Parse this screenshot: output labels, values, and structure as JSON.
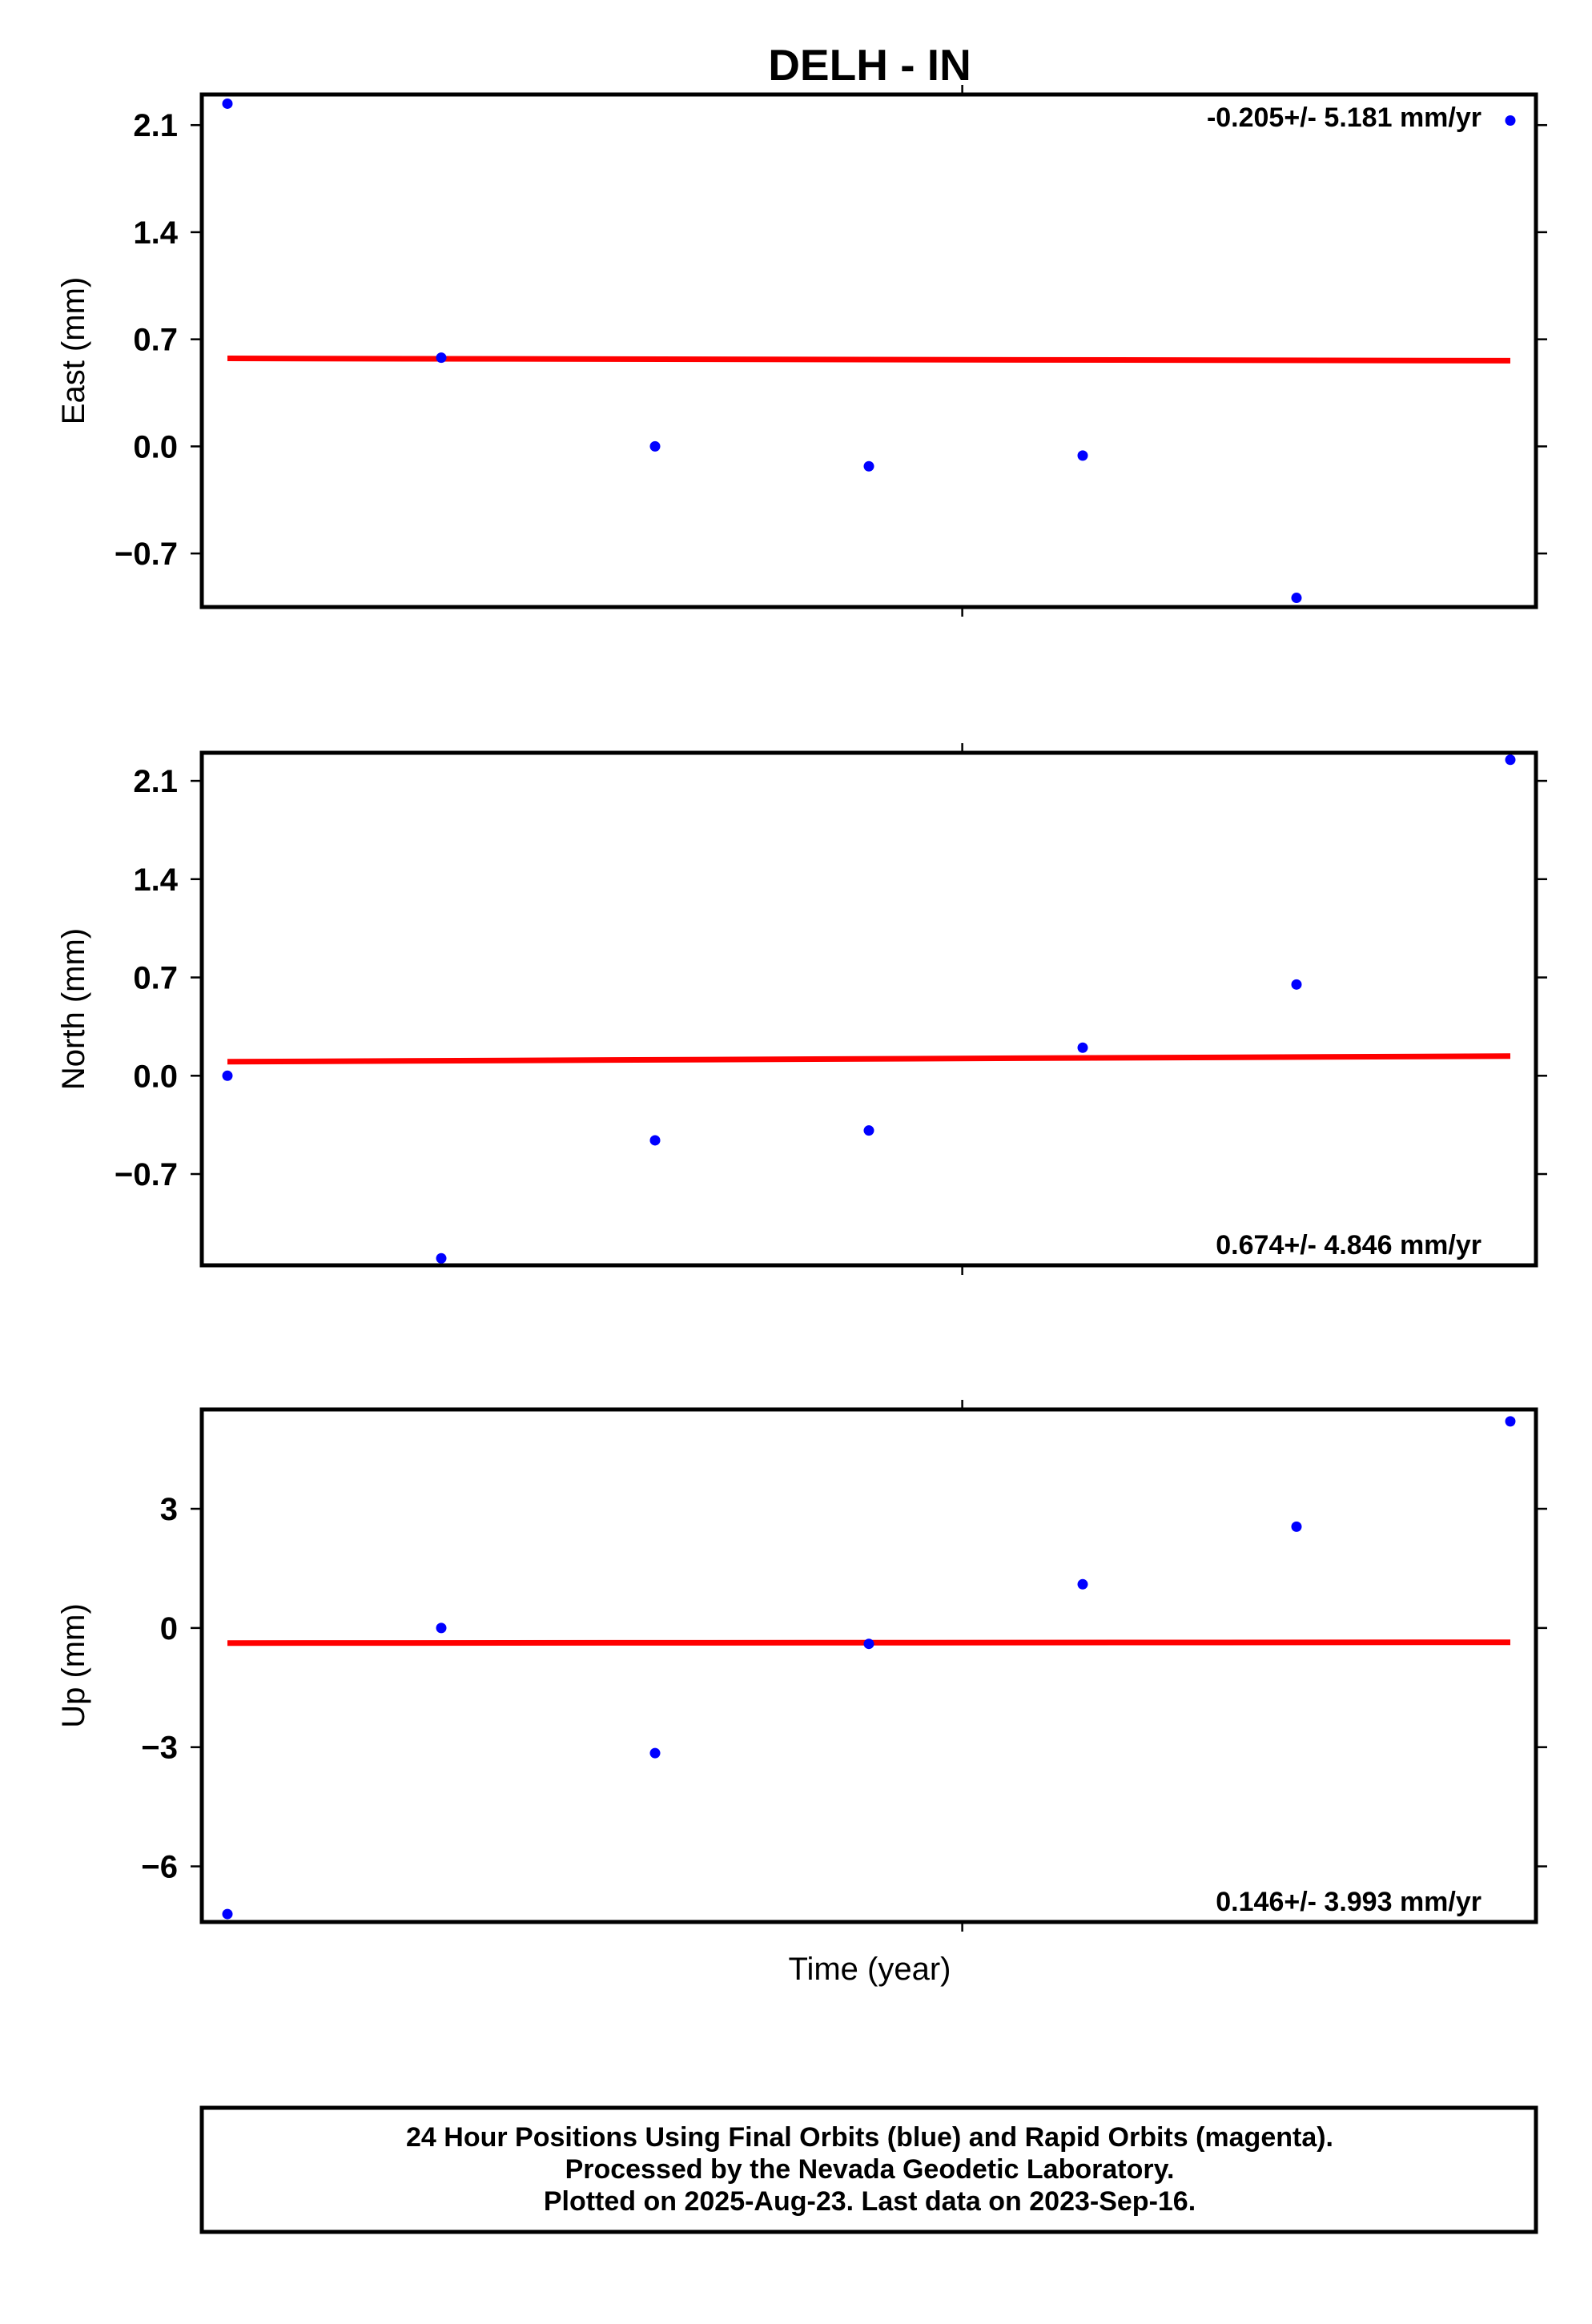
{
  "chart_data": {
    "type": "scatter",
    "title": "DELH - IN",
    "xlabel": "Time (year)",
    "x": [
      1,
      2,
      3,
      4,
      5,
      6,
      7
    ],
    "colors": {
      "points": "#0000ff",
      "trend": "#ff0000"
    },
    "panels": [
      {
        "ylabel": "East (mm)",
        "ylim": [
          -1.05,
          2.3
        ],
        "yticks": [
          2.1,
          1.4,
          0.7,
          0.0,
          -0.7
        ],
        "ytick_labels": [
          "2.1",
          "1.4",
          "0.7",
          "0.0",
          "−0.7"
        ],
        "values": [
          2.24,
          0.58,
          0.0,
          -0.13,
          -0.06,
          -0.99,
          2.13
        ],
        "trend": [
          0.575,
          0.56
        ],
        "rate_text": "-0.205+/- 5.181 mm/yr",
        "rate_position": "top-right"
      },
      {
        "ylabel": "North (mm)",
        "ylim": [
          -1.35,
          2.3
        ],
        "yticks": [
          2.1,
          1.4,
          0.7,
          0.0,
          -0.7
        ],
        "ytick_labels": [
          "2.1",
          "1.4",
          "0.7",
          "0.0",
          "−0.7"
        ],
        "values": [
          0.0,
          -1.3,
          -0.46,
          -0.39,
          0.2,
          0.65,
          2.25
        ],
        "trend": [
          0.1,
          0.14
        ],
        "rate_text": "0.674+/- 4.846 mm/yr",
        "rate_position": "bottom-right"
      },
      {
        "ylabel": "Up (mm)",
        "ylim": [
          -7.4,
          5.5
        ],
        "yticks": [
          3,
          0,
          -3,
          -6
        ],
        "ytick_labels": [
          "3",
          "0",
          "−3",
          "−6"
        ],
        "values": [
          -7.2,
          0.0,
          -3.15,
          -0.4,
          1.1,
          2.55,
          5.2
        ],
        "trend": [
          -0.38,
          -0.36
        ],
        "rate_text": "0.146+/- 3.993 mm/yr",
        "rate_position": "bottom-right"
      }
    ]
  },
  "caption": {
    "lines": [
      "24 Hour Positions Using Final Orbits (blue) and Rapid Orbits (magenta).",
      "Processed by the Nevada Geodetic Laboratory.",
      "Plotted on 2025-Aug-23. Last data on 2023-Sep-16."
    ]
  }
}
